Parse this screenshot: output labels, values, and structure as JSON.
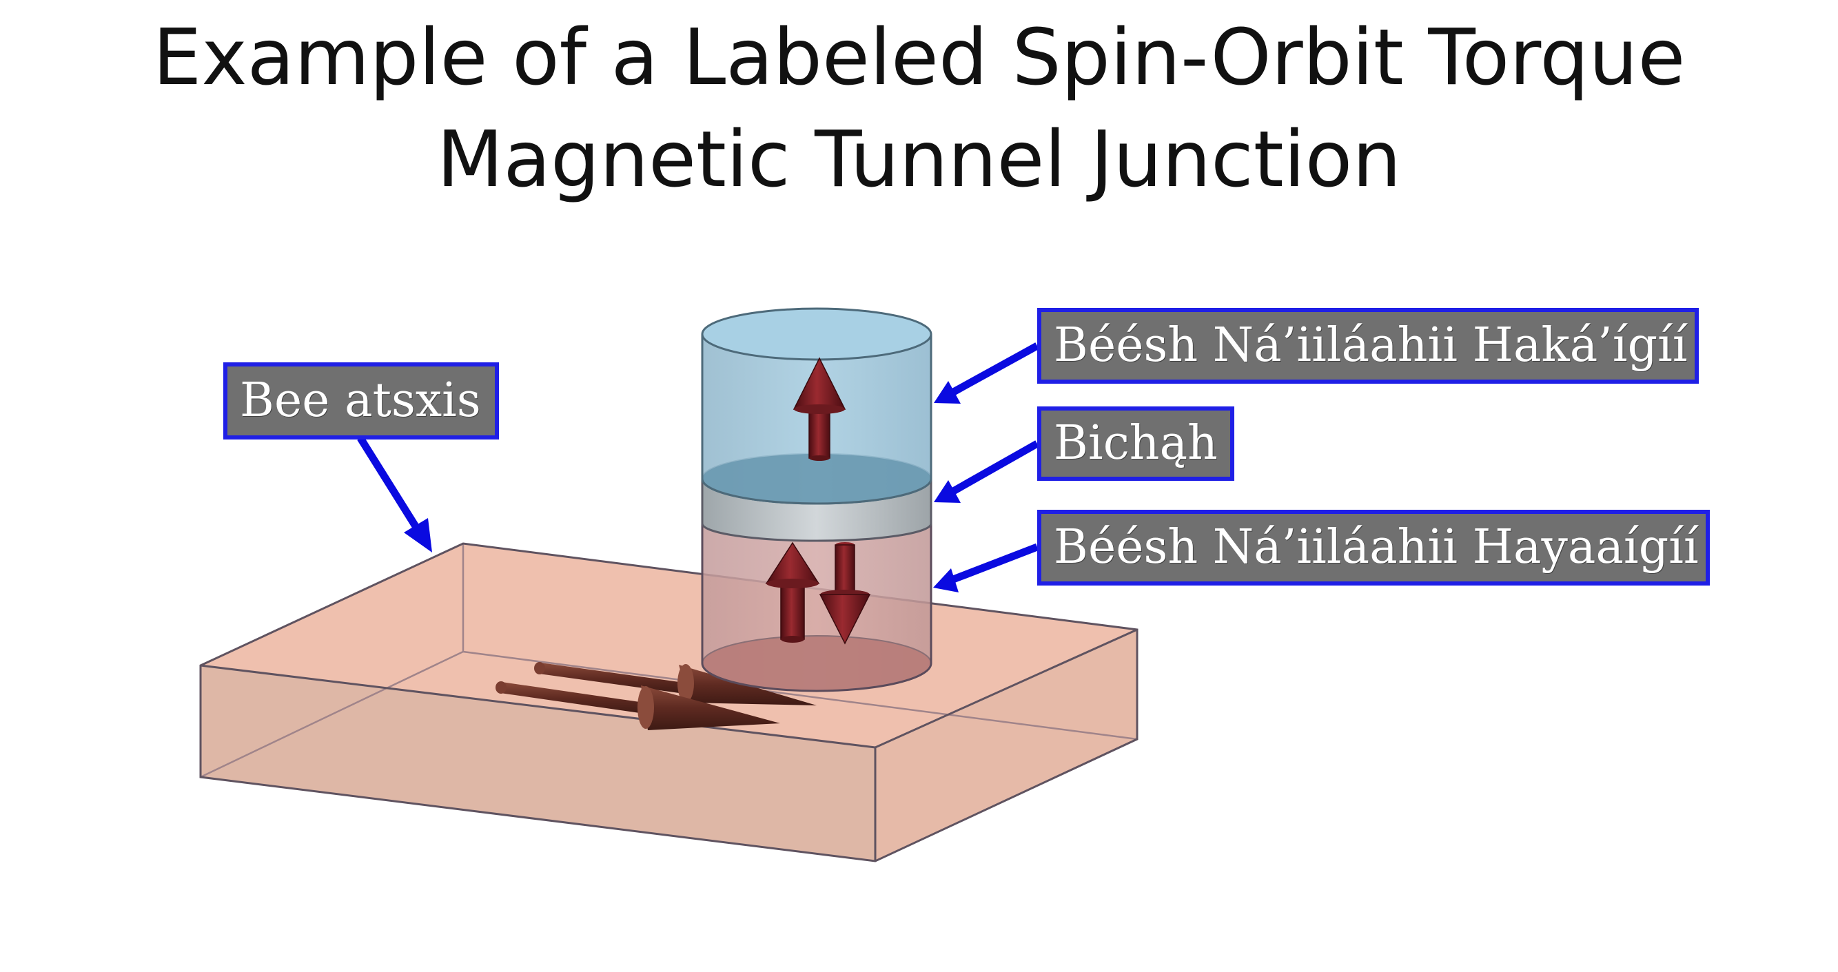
{
  "title": {
    "line1": "Example of a Labeled Spin-Orbit Torque",
    "line2": "Magnetic Tunnel Junction"
  },
  "labels": {
    "substrate": "Bee atsxis",
    "free_layer": "Béésh Ná’iiláahii Haká’ígíí",
    "barrier": "Bichąh",
    "fixed_layer": "Béésh Ná’iiláahii Hayaaígíí"
  },
  "colors": {
    "label_border": "#1f1fe6",
    "label_fill": "#707070",
    "arrow_pointer": "#0a0ae0",
    "substrate_top": "#efc0ae",
    "substrate_front": "#deb5a3",
    "free_layer": "#8fbdd6",
    "barrier": "#a9b0b4",
    "fixed_layer": "#c99592",
    "magnet_arrow": "#7a1a1f",
    "current_arrow": "#6b3328"
  }
}
